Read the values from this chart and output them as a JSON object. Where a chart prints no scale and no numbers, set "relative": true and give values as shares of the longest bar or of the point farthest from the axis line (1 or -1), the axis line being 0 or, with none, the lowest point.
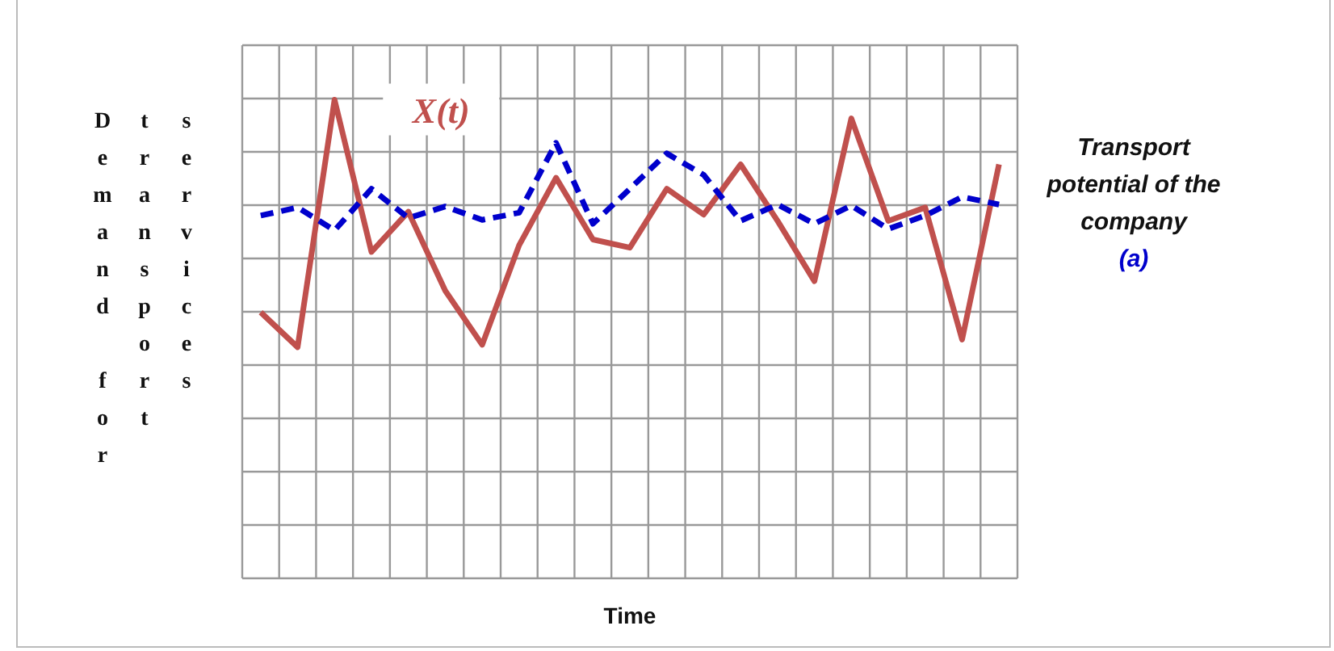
{
  "chart_data": {
    "type": "line",
    "relative": true,
    "xlabel": "Time",
    "ylabel": "Demand for transport services",
    "categories": [
      null,
      null,
      null,
      null,
      null,
      null,
      null,
      null,
      null,
      null,
      null,
      null,
      null,
      null,
      null,
      null,
      null,
      null,
      null,
      null,
      null
    ],
    "grid": true,
    "marker": "none",
    "series": [
      {
        "name": "X(t)",
        "color": "#c0504d",
        "line_style": "solid",
        "values": [
          0.556,
          0.483,
          1,
          0.682,
          0.766,
          0.601,
          0.488,
          0.696,
          0.837,
          0.708,
          0.691,
          0.814,
          0.76,
          0.865,
          0.747,
          0.621,
          0.961,
          0.747,
          0.775,
          0.499,
          0.865
        ]
      },
      {
        "name": "Transport potential of the company (a)",
        "color": "#0000cc",
        "line_style": "dashed",
        "values": [
          0.758,
          0.775,
          0.727,
          0.814,
          0.753,
          0.777,
          0.749,
          0.764,
          0.91,
          0.741,
          0.814,
          0.888,
          0.843,
          0.747,
          0.781,
          0.741,
          0.779,
          0.73,
          0.758,
          0.797,
          0.781
        ]
      }
    ]
  }
}
